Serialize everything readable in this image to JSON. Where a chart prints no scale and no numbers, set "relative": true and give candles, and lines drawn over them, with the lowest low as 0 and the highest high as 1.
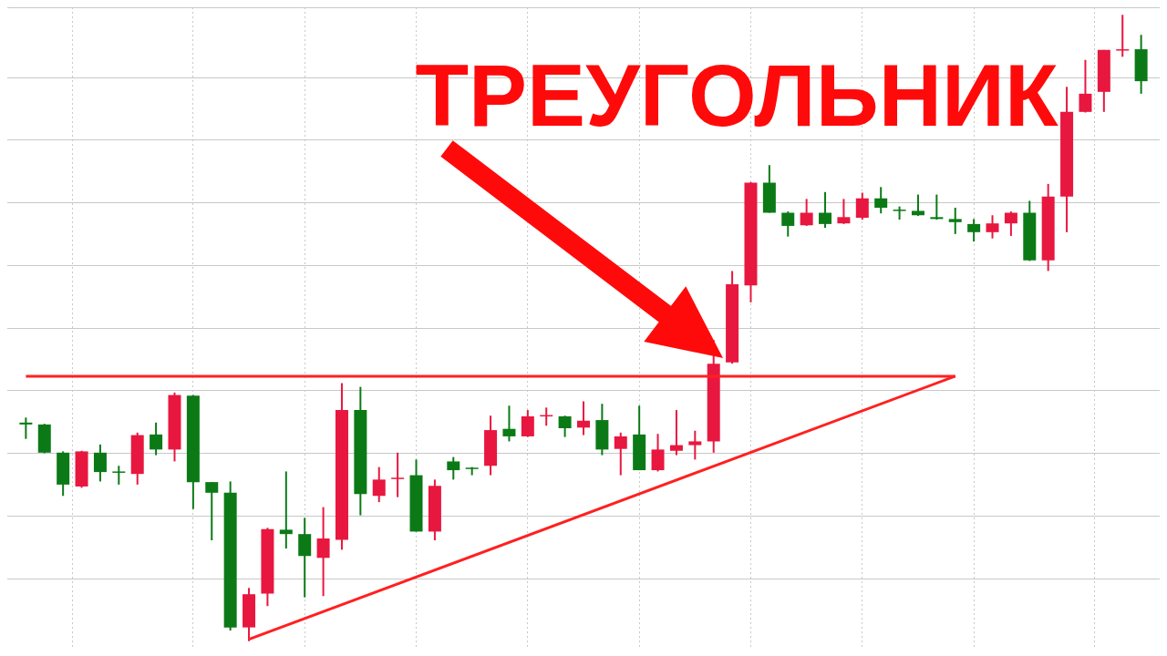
{
  "chart_data": {
    "type": "candlestick",
    "title": "ТРЕУГОЛЬНИК",
    "relative": true,
    "grid": true,
    "categories": [
      null,
      null,
      null,
      null,
      null,
      null,
      null,
      null,
      null,
      null,
      null,
      null,
      null,
      null,
      null,
      null,
      null,
      null,
      null,
      null,
      null,
      null,
      null,
      null,
      null,
      null,
      null,
      null,
      null,
      null,
      null,
      null,
      null,
      null,
      null,
      null,
      null,
      null,
      null,
      null,
      null,
      null,
      null,
      null,
      null,
      null,
      null,
      null,
      null,
      null,
      null,
      null,
      null,
      null,
      null,
      null,
      null,
      null,
      null,
      null,
      null
    ],
    "ohlc": [
      [
        0.349,
        0.357,
        0.323,
        0.346
      ],
      [
        0.346,
        0.347,
        0.3,
        0.301
      ],
      [
        0.301,
        0.303,
        0.232,
        0.25
      ],
      [
        0.247,
        0.304,
        0.245,
        0.303
      ],
      [
        0.301,
        0.314,
        0.255,
        0.27
      ],
      [
        0.271,
        0.28,
        0.25,
        0.27
      ],
      [
        0.267,
        0.333,
        0.25,
        0.329
      ],
      [
        0.33,
        0.349,
        0.297,
        0.306
      ],
      [
        0.306,
        0.397,
        0.287,
        0.393
      ],
      [
        0.392,
        0.393,
        0.211,
        0.254
      ],
      [
        0.254,
        0.254,
        0.161,
        0.237
      ],
      [
        0.237,
        0.255,
        0.017,
        0.022
      ],
      [
        0.022,
        0.085,
        0,
        0.075
      ],
      [
        0.076,
        0.181,
        0.056,
        0.179
      ],
      [
        0.178,
        0.271,
        0.148,
        0.171
      ],
      [
        0.171,
        0.197,
        0.07,
        0.136
      ],
      [
        0.133,
        0.214,
        0.072,
        0.164
      ],
      [
        0.162,
        0.412,
        0.146,
        0.369
      ],
      [
        0.369,
        0.406,
        0.201,
        0.235
      ],
      [
        0.232,
        0.278,
        0.222,
        0.258
      ],
      [
        0.26,
        0.301,
        0.23,
        0.261
      ],
      [
        0.265,
        0.29,
        0.175,
        0.175
      ],
      [
        0.175,
        0.258,
        0.161,
        0.248
      ],
      [
        0.287,
        0.294,
        0.258,
        0.273
      ],
      [
        0.277,
        0.278,
        0.265,
        0.275
      ],
      [
        0.28,
        0.36,
        0.265,
        0.337
      ],
      [
        0.339,
        0.376,
        0.319,
        0.327
      ],
      [
        0.327,
        0.369,
        0.326,
        0.359
      ],
      [
        0.36,
        0.373,
        0.344,
        0.361
      ],
      [
        0.359,
        0.36,
        0.326,
        0.34
      ],
      [
        0.341,
        0.383,
        0.329,
        0.352
      ],
      [
        0.353,
        0.379,
        0.297,
        0.306
      ],
      [
        0.307,
        0.333,
        0.265,
        0.327
      ],
      [
        0.33,
        0.376,
        0.273,
        0.273
      ],
      [
        0.273,
        0.331,
        0.271,
        0.306
      ],
      [
        0.304,
        0.369,
        0.297,
        0.313
      ],
      [
        0.313,
        0.336,
        0.29,
        0.319
      ],
      [
        0.319,
        0.481,
        0.301,
        0.443
      ],
      [
        0.445,
        0.591,
        0.443,
        0.57
      ],
      [
        0.568,
        0.733,
        0.541,
        0.732
      ],
      [
        0.732,
        0.76,
        0.684,
        0.684
      ],
      [
        0.684,
        0.686,
        0.646,
        0.663
      ],
      [
        0.664,
        0.706,
        0.663,
        0.684
      ],
      [
        0.684,
        0.717,
        0.66,
        0.666
      ],
      [
        0.667,
        0.706,
        0.666,
        0.677
      ],
      [
        0.676,
        0.716,
        0.673,
        0.707
      ],
      [
        0.707,
        0.725,
        0.683,
        0.692
      ],
      [
        0.689,
        0.694,
        0.673,
        0.687
      ],
      [
        0.687,
        0.713,
        0.679,
        0.68
      ],
      [
        0.677,
        0.713,
        0.673,
        0.674
      ],
      [
        0.674,
        0.692,
        0.65,
        0.669
      ],
      [
        0.666,
        0.674,
        0.638,
        0.653
      ],
      [
        0.653,
        0.68,
        0.643,
        0.667
      ],
      [
        0.667,
        0.686,
        0.647,
        0.684
      ],
      [
        0.684,
        0.703,
        0.607,
        0.608
      ],
      [
        0.608,
        0.73,
        0.591,
        0.71
      ],
      [
        0.71,
        0.885,
        0.653,
        0.845
      ],
      [
        0.845,
        0.928,
        0.844,
        0.874
      ],
      [
        0.877,
        0.944,
        0.845,
        0.944
      ],
      [
        0.944,
        1,
        0.933,
        0.945
      ],
      [
        0.945,
        0.968,
        0.874,
        0.894
      ]
    ],
    "colors": [
      "#0b7a16",
      "#0b7a16",
      "#0b7a16",
      "#e8173f",
      "#0b7a16",
      "#0b7a16",
      "#e8173f",
      "#0b7a16",
      "#e8173f",
      "#0b7a16",
      "#0b7a16",
      "#0b7a16",
      "#e8173f",
      "#e8173f",
      "#0b7a16",
      "#0b7a16",
      "#e8173f",
      "#e8173f",
      "#0b7a16",
      "#e8173f",
      "#e8173f",
      "#0b7a16",
      "#e8173f",
      "#0b7a16",
      "#0b7a16",
      "#e8173f",
      "#0b7a16",
      "#e8173f",
      "#e8173f",
      "#0b7a16",
      "#e8173f",
      "#0b7a16",
      "#e8173f",
      "#0b7a16",
      "#e8173f",
      "#e8173f",
      "#e8173f",
      "#e8173f",
      "#e8173f",
      "#e8173f",
      "#0b7a16",
      "#0b7a16",
      "#e8173f",
      "#0b7a16",
      "#e8173f",
      "#e8173f",
      "#0b7a16",
      "#0b7a16",
      "#0b7a16",
      "#0b7a16",
      "#0b7a16",
      "#0b7a16",
      "#e8173f",
      "#e8173f",
      "#0b7a16",
      "#e8173f",
      "#e8173f",
      "#e8173f",
      "#e8173f",
      "#e8173f",
      "#0b7a16"
    ],
    "series": [
      {
        "type": "line",
        "color": "#ff2020",
        "values": [
          0.423,
          null,
          null,
          null,
          null,
          null,
          null,
          null,
          null,
          null,
          null,
          null,
          null,
          null,
          null,
          null,
          null,
          null,
          null,
          null,
          null,
          null,
          null,
          null,
          null,
          null,
          null,
          null,
          null,
          null,
          null,
          null,
          null,
          null,
          null,
          null,
          null,
          null,
          null,
          null,
          null,
          null,
          null,
          null,
          null,
          null,
          null,
          null,
          null,
          null,
          0.423,
          null,
          null,
          null,
          null,
          null,
          null,
          null,
          null,
          null,
          null
        ]
      },
      {
        "type": "line",
        "color": "#ff2020",
        "values": [
          null,
          null,
          null,
          null,
          null,
          null,
          null,
          null,
          null,
          null,
          null,
          null,
          0.003,
          null,
          null,
          null,
          null,
          null,
          null,
          null,
          null,
          null,
          null,
          null,
          null,
          null,
          null,
          null,
          null,
          null,
          null,
          null,
          null,
          null,
          null,
          null,
          null,
          null,
          null,
          null,
          null,
          null,
          null,
          null,
          null,
          null,
          null,
          null,
          null,
          null,
          0.423,
          null,
          null,
          null,
          null,
          null,
          null,
          null,
          null,
          null,
          null
        ]
      }
    ]
  }
}
